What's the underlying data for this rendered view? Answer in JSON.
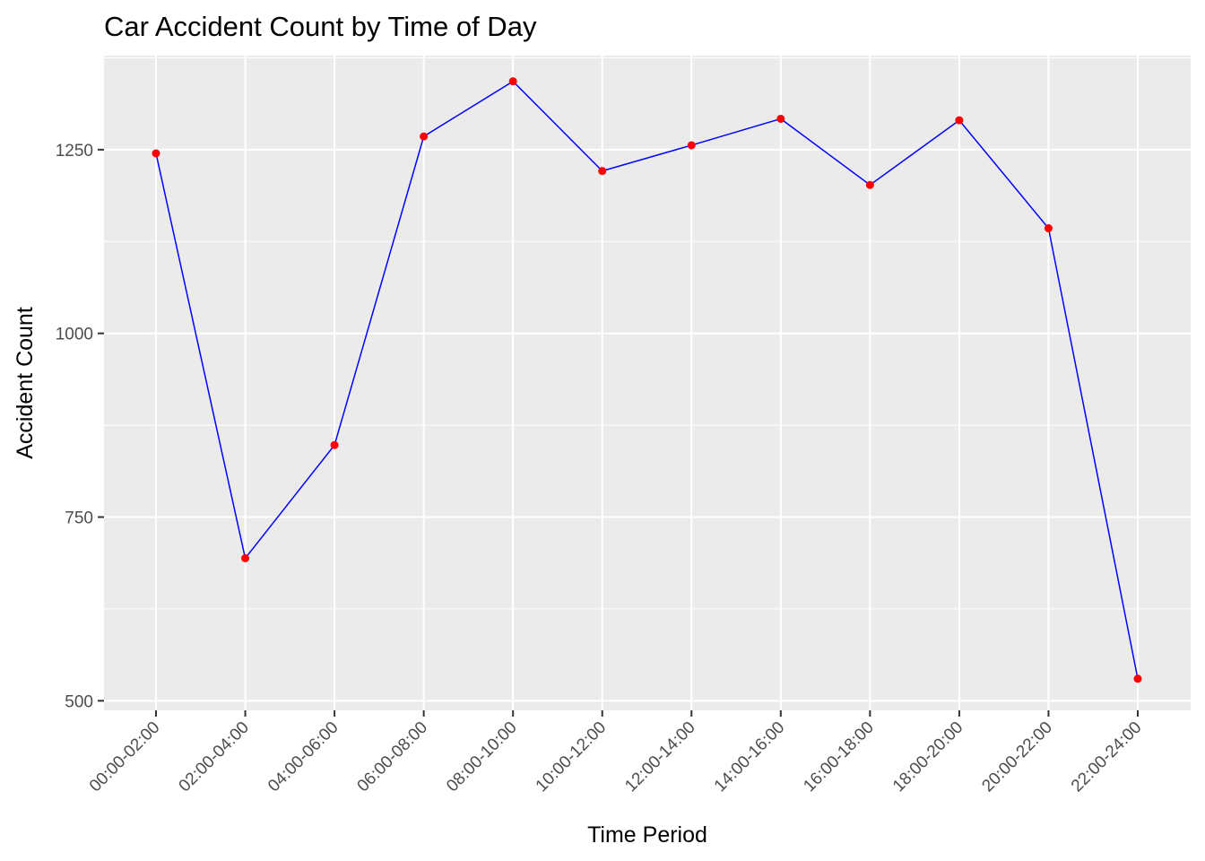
{
  "chart_data": {
    "type": "line",
    "title": "Car Accident Count by Time of Day",
    "xlabel": "Time Period",
    "ylabel": "Accident Count",
    "categories": [
      "00:00-02:00",
      "02:00-04:00",
      "04:00-06:00",
      "06:00-08:00",
      "08:00-10:00",
      "10:00-12:00",
      "12:00-14:00",
      "14:00-16:00",
      "16:00-18:00",
      "18:00-20:00",
      "20:00-22:00",
      "22:00-24:00"
    ],
    "series": [
      {
        "values": [
          1245,
          694,
          848,
          1268,
          1343,
          1221,
          1256,
          1292,
          1202,
          1290,
          1143,
          530
        ]
      }
    ],
    "y_ticks": [
      500,
      750,
      1000,
      1250
    ],
    "ylim": [
      487,
      1378
    ],
    "grid": true,
    "colors": {
      "line": "#0000ff",
      "points": "#ff0000",
      "panel": "#ebebeb",
      "grid": "#ffffff"
    }
  }
}
